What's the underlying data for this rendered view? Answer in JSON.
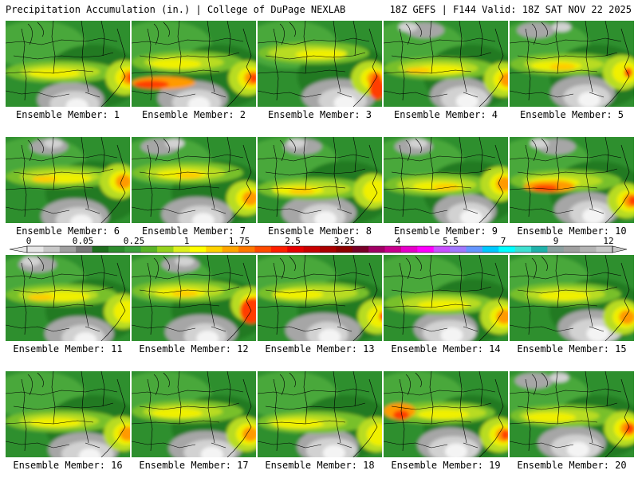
{
  "header": {
    "left": "Precipitation Accumulation (in.) | College of DuPage NEXLAB",
    "right": "18Z GEFS | F144 Valid: 18Z SAT NOV 22 2025"
  },
  "panels": [
    {
      "label": "Ensemble Member: 1"
    },
    {
      "label": "Ensemble Member: 2"
    },
    {
      "label": "Ensemble Member: 3"
    },
    {
      "label": "Ensemble Member: 4"
    },
    {
      "label": "Ensemble Member: 5"
    },
    {
      "label": "Ensemble Member: 6"
    },
    {
      "label": "Ensemble Member: 7"
    },
    {
      "label": "Ensemble Member: 8"
    },
    {
      "label": "Ensemble Member: 9"
    },
    {
      "label": "Ensemble Member: 10"
    },
    {
      "label": "Ensemble Member: 11"
    },
    {
      "label": "Ensemble Member: 12"
    },
    {
      "label": "Ensemble Member: 13"
    },
    {
      "label": "Ensemble Member: 14"
    },
    {
      "label": "Ensemble Member: 15"
    },
    {
      "label": "Ensemble Member: 16"
    },
    {
      "label": "Ensemble Member: 17"
    },
    {
      "label": "Ensemble Member: 18"
    },
    {
      "label": "Ensemble Member: 19"
    },
    {
      "label": "Ensemble Member: 20"
    }
  ],
  "colorbar": {
    "ticks": [
      "0",
      "0.05",
      "0.25",
      "1",
      "1.75",
      "2.5",
      "3.25",
      "4",
      "5.5",
      "7",
      "9",
      "12"
    ],
    "colors": [
      "#e6e6e6",
      "#c8c8c8",
      "#a0a0a0",
      "#787878",
      "#1e6e1e",
      "#2d8c2d",
      "#3ca03c",
      "#5ab428",
      "#96d21e",
      "#dcf01e",
      "#ffff00",
      "#ffd200",
      "#ffa500",
      "#ff7800",
      "#ff4b00",
      "#ff1e00",
      "#e60000",
      "#c80000",
      "#aa0000",
      "#8c0000",
      "#780028",
      "#a00064",
      "#c8008c",
      "#e600c8",
      "#ff00ff",
      "#c850ff",
      "#a078ff",
      "#6496ff",
      "#00c8ff",
      "#00ffff",
      "#40e0d0",
      "#20b2aa",
      "#8ca0a0",
      "#a0a0a0",
      "#b4b4b4",
      "#c8c8c8"
    ]
  }
}
